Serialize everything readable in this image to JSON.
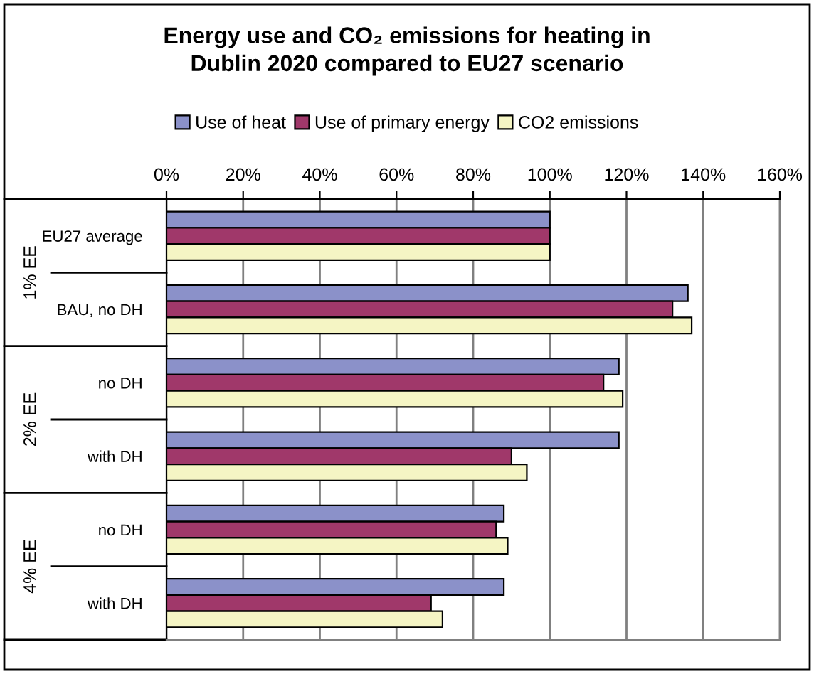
{
  "chart_data": {
    "type": "bar",
    "orientation": "horizontal",
    "title": "Energy use and CO₂ emissions for heating in\nDublin 2020 compared to EU27 scenario",
    "categories": [
      "EU27 average",
      "BAU, no DH",
      "no DH",
      "with DH",
      "no DH",
      "with DH"
    ],
    "annotations": [
      "1% EE",
      "2% EE",
      "4% EE"
    ],
    "series": [
      {
        "name": "Use of heat",
        "color": "#8b91c9",
        "values": [
          100,
          136,
          118,
          118,
          88,
          88
        ]
      },
      {
        "name": "Use of primary energy",
        "color": "#a0386a",
        "values": [
          100,
          132,
          114,
          90,
          86,
          69
        ]
      },
      {
        "name": "CO2 emissions",
        "color": "#f5f5c4",
        "values": [
          100,
          137,
          119,
          94,
          89,
          72
        ]
      }
    ],
    "xlim": [
      0,
      160
    ],
    "xticks": [
      {
        "value": 0,
        "label": "0%"
      },
      {
        "value": 20,
        "label": "20%"
      },
      {
        "value": 40,
        "label": "40%"
      },
      {
        "value": 60,
        "label": "60%"
      },
      {
        "value": 80,
        "label": "80%"
      },
      {
        "value": 100,
        "label": "100%"
      },
      {
        "value": 120,
        "label": "120%"
      },
      {
        "value": 140,
        "label": "140%"
      },
      {
        "value": 160,
        "label": "160%"
      }
    ],
    "grid": "x",
    "legend": "top"
  }
}
